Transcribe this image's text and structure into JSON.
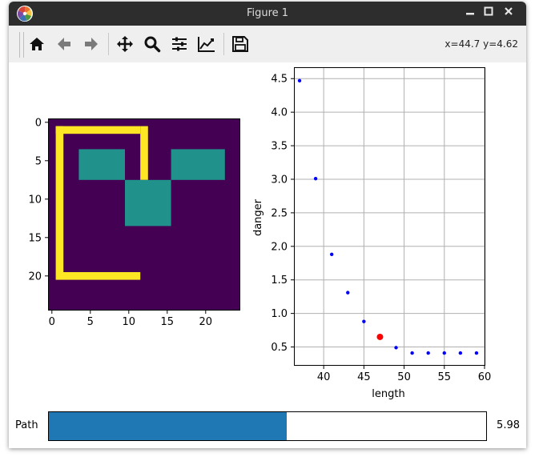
{
  "window": {
    "title": "Figure 1",
    "controls": [
      "minimize-icon",
      "maximize-icon",
      "close-icon"
    ]
  },
  "toolbar": {
    "buttons": [
      {
        "name": "home-button",
        "icon": "home-icon",
        "label": "Home"
      },
      {
        "name": "back-button",
        "icon": "arrow-left-icon",
        "label": "Back"
      },
      {
        "name": "forward-button",
        "icon": "arrow-right-icon",
        "label": "Forward"
      },
      {
        "name": "pan-button",
        "icon": "move-icon",
        "label": "Pan"
      },
      {
        "name": "zoom-button",
        "icon": "magnifier-icon",
        "label": "Zoom"
      },
      {
        "name": "subplots-button",
        "icon": "sliders-icon",
        "label": "Subplots"
      },
      {
        "name": "customize-button",
        "icon": "line-chart-icon",
        "label": "Customize"
      },
      {
        "name": "save-button",
        "icon": "floppy-icon",
        "label": "Save"
      }
    ],
    "coords": "x=44.7 y=4.62"
  },
  "grid_map": {
    "size": 25,
    "x_ticks": [
      "0",
      "5",
      "10",
      "15",
      "20"
    ],
    "y_ticks": [
      "0",
      "5",
      "10",
      "15",
      "20"
    ],
    "colors": {
      "background": "#440154",
      "wall": "#fde725",
      "obstacle": "#21918c"
    },
    "wall_rects": [
      {
        "r0": 1,
        "r1": 2,
        "c0": 1,
        "c1": 12
      },
      {
        "r0": 1,
        "r1": 20,
        "c0": 1,
        "c1": 2
      },
      {
        "r0": 20,
        "r1": 21,
        "c0": 1,
        "c1": 12
      },
      {
        "r0": 1,
        "r1": 8,
        "c0": 12,
        "c1": 13
      }
    ],
    "obstacle_rects": [
      {
        "r0": 4,
        "r1": 8,
        "c0": 4,
        "c1": 10
      },
      {
        "r0": 8,
        "r1": 14,
        "c0": 10,
        "c1": 16
      },
      {
        "r0": 4,
        "r1": 8,
        "c0": 16,
        "c1": 23
      }
    ]
  },
  "chart_data": {
    "type": "scatter",
    "title": "",
    "xlabel": "length",
    "ylabel": "danger",
    "xlim": [
      36.3,
      60.1
    ],
    "ylim": [
      0.22,
      4.67
    ],
    "x_ticks": [
      40,
      45,
      50,
      55,
      60
    ],
    "y_ticks": [
      0.5,
      1.0,
      1.5,
      2.0,
      2.5,
      3.0,
      3.5,
      4.0,
      4.5
    ],
    "x_tick_labels": [
      "40",
      "45",
      "50",
      "55",
      "60"
    ],
    "y_tick_labels": [
      "0.5",
      "1.0",
      "1.5",
      "2.0",
      "2.5",
      "3.0",
      "3.5",
      "4.0",
      "4.5"
    ],
    "grid": true,
    "series": [
      {
        "color": "#0000ff",
        "marker_size": 2.2,
        "points": [
          [
            37,
            4.47
          ],
          [
            39,
            3.01
          ],
          [
            41,
            1.88
          ],
          [
            43,
            1.31
          ],
          [
            45,
            0.88
          ],
          [
            49,
            0.49
          ],
          [
            51,
            0.41
          ],
          [
            53,
            0.41
          ],
          [
            55,
            0.41
          ],
          [
            57,
            0.41
          ],
          [
            59,
            0.41
          ]
        ]
      },
      {
        "color": "#ff0000",
        "marker_size": 4,
        "points": [
          [
            47,
            0.65
          ]
        ]
      }
    ]
  },
  "slider": {
    "label": "Path",
    "value_text": "5.98",
    "fraction": 0.544,
    "fill_color": "#1f77b4"
  }
}
